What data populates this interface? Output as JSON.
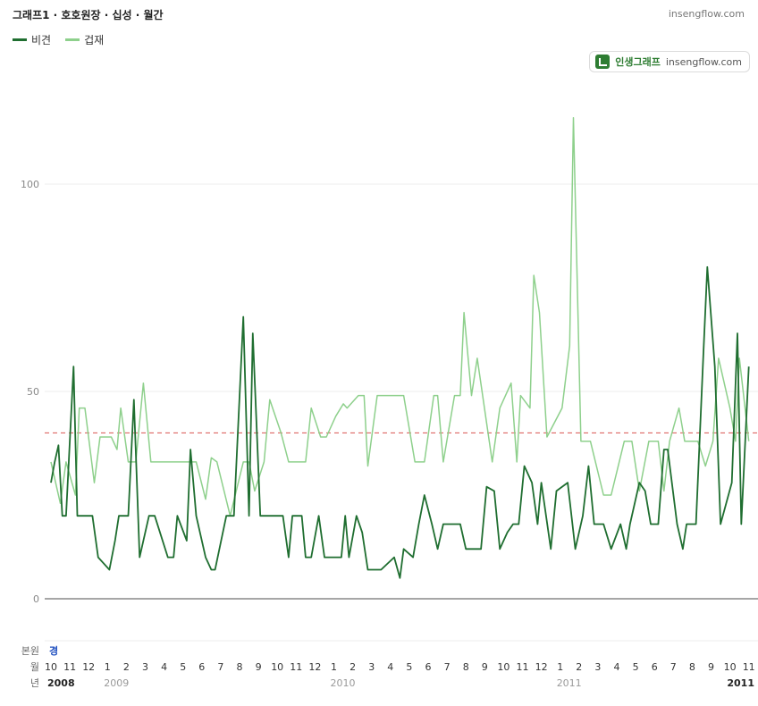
{
  "header": {
    "title": "그래프1 · 호호원장 · 십성 · 월간",
    "site": "insengflow.com"
  },
  "badge": {
    "brand": "인생그래프",
    "url": "insengflow.com"
  },
  "legend": [
    {
      "name": "비견",
      "color": "#1f6e30"
    },
    {
      "name": "겁재",
      "color": "#8ed08c"
    }
  ],
  "rows": {
    "bonwon": "본원",
    "bonwon_value": "경",
    "month": "월",
    "year": "년"
  },
  "chart_data": {
    "type": "line",
    "ylim": [
      0,
      130
    ],
    "y_ticks": [
      0,
      50,
      100
    ],
    "reference_line": 40,
    "grid": true,
    "legend_position": "top-left",
    "month_labels": [
      "10",
      "11",
      "12",
      "1",
      "2",
      "3",
      "4",
      "5",
      "6",
      "7",
      "8",
      "9",
      "10",
      "11",
      "12",
      "1",
      "2",
      "3",
      "4",
      "5",
      "6",
      "7",
      "8",
      "9",
      "10",
      "11",
      "12",
      "1",
      "2",
      "3",
      "4",
      "5",
      "6",
      "7",
      "8",
      "9",
      "10",
      "11"
    ],
    "year_labels": [
      {
        "label": "2008",
        "month_index": 0,
        "bold": true
      },
      {
        "label": "2009",
        "month_index": 3,
        "bold": false
      },
      {
        "label": "2010",
        "month_index": 15,
        "bold": false
      },
      {
        "label": "2011",
        "month_index": 27,
        "bold": false
      },
      {
        "label": "2011",
        "month_index": 37,
        "bold": true
      }
    ],
    "series": [
      {
        "name": "비견",
        "color": "#1f6e30",
        "points": [
          [
            0,
            28
          ],
          [
            0.2,
            33
          ],
          [
            0.4,
            37
          ],
          [
            0.6,
            20
          ],
          [
            0.8,
            20
          ],
          [
            1.2,
            56
          ],
          [
            1.4,
            20
          ],
          [
            1.8,
            20
          ],
          [
            2.2,
            20
          ],
          [
            2.5,
            10
          ],
          [
            3.1,
            7
          ],
          [
            3.4,
            14
          ],
          [
            3.6,
            20
          ],
          [
            4.1,
            20
          ],
          [
            4.4,
            48
          ],
          [
            4.7,
            10
          ],
          [
            5.2,
            20
          ],
          [
            5.5,
            20
          ],
          [
            6.2,
            10
          ],
          [
            6.5,
            10
          ],
          [
            6.7,
            20
          ],
          [
            7.2,
            14
          ],
          [
            7.4,
            36
          ],
          [
            7.7,
            20
          ],
          [
            8.2,
            10
          ],
          [
            8.5,
            7
          ],
          [
            8.7,
            7
          ],
          [
            9.3,
            20
          ],
          [
            9.7,
            20
          ],
          [
            10.2,
            68
          ],
          [
            10.5,
            20
          ],
          [
            10.7,
            64
          ],
          [
            11.1,
            20
          ],
          [
            11.6,
            20
          ],
          [
            12.3,
            20
          ],
          [
            12.6,
            10
          ],
          [
            12.8,
            20
          ],
          [
            13.3,
            20
          ],
          [
            13.5,
            10
          ],
          [
            13.8,
            10
          ],
          [
            14.2,
            20
          ],
          [
            14.5,
            10
          ],
          [
            15.1,
            10
          ],
          [
            15.4,
            10
          ],
          [
            15.6,
            20
          ],
          [
            15.8,
            10
          ],
          [
            16.2,
            20
          ],
          [
            16.5,
            16
          ],
          [
            16.8,
            7
          ],
          [
            17.2,
            7
          ],
          [
            17.5,
            7
          ],
          [
            18.2,
            10
          ],
          [
            18.5,
            5
          ],
          [
            18.7,
            12
          ],
          [
            19.2,
            10
          ],
          [
            19.5,
            18
          ],
          [
            19.8,
            25
          ],
          [
            20.2,
            18
          ],
          [
            20.5,
            12
          ],
          [
            20.8,
            18
          ],
          [
            21.2,
            18
          ],
          [
            21.7,
            18
          ],
          [
            22.0,
            12
          ],
          [
            22.5,
            12
          ],
          [
            22.8,
            12
          ],
          [
            23.1,
            27
          ],
          [
            23.5,
            26
          ],
          [
            23.8,
            12
          ],
          [
            24.2,
            16
          ],
          [
            24.5,
            18
          ],
          [
            24.8,
            18
          ],
          [
            25.1,
            32
          ],
          [
            25.5,
            28
          ],
          [
            25.8,
            18
          ],
          [
            26.0,
            28
          ],
          [
            26.5,
            12
          ],
          [
            26.8,
            26
          ],
          [
            27.4,
            28
          ],
          [
            27.8,
            12
          ],
          [
            28.2,
            20
          ],
          [
            28.5,
            32
          ],
          [
            28.8,
            18
          ],
          [
            29.3,
            18
          ],
          [
            29.7,
            12
          ],
          [
            30.2,
            18
          ],
          [
            30.5,
            12
          ],
          [
            30.7,
            18
          ],
          [
            31.2,
            28
          ],
          [
            31.5,
            26
          ],
          [
            31.8,
            18
          ],
          [
            32.2,
            18
          ],
          [
            32.5,
            36
          ],
          [
            32.7,
            36
          ],
          [
            33.2,
            18
          ],
          [
            33.5,
            12
          ],
          [
            33.7,
            18
          ],
          [
            34.2,
            18
          ],
          [
            34.6,
            60
          ],
          [
            34.8,
            80
          ],
          [
            35.2,
            56
          ],
          [
            35.5,
            18
          ],
          [
            36.1,
            28
          ],
          [
            36.4,
            64
          ],
          [
            36.6,
            18
          ],
          [
            37.0,
            56
          ]
        ]
      },
      {
        "name": "겁재",
        "color": "#8ed08c",
        "points": [
          [
            0,
            33
          ],
          [
            0.5,
            23
          ],
          [
            0.8,
            33
          ],
          [
            1.3,
            25
          ],
          [
            1.5,
            46
          ],
          [
            1.8,
            46
          ],
          [
            2.3,
            28
          ],
          [
            2.6,
            39
          ],
          [
            3.2,
            39
          ],
          [
            3.5,
            36
          ],
          [
            3.7,
            46
          ],
          [
            4.1,
            33
          ],
          [
            4.5,
            33
          ],
          [
            4.9,
            52
          ],
          [
            5.3,
            33
          ],
          [
            6.2,
            33
          ],
          [
            6.8,
            33
          ],
          [
            7.2,
            33
          ],
          [
            7.7,
            33
          ],
          [
            8.2,
            24
          ],
          [
            8.5,
            34
          ],
          [
            8.8,
            33
          ],
          [
            9.5,
            20
          ],
          [
            10.2,
            33
          ],
          [
            10.5,
            33
          ],
          [
            10.8,
            26
          ],
          [
            11.3,
            33
          ],
          [
            11.6,
            48
          ],
          [
            12.2,
            40
          ],
          [
            12.6,
            33
          ],
          [
            13.2,
            33
          ],
          [
            13.5,
            33
          ],
          [
            13.8,
            46
          ],
          [
            14.3,
            39
          ],
          [
            14.6,
            39
          ],
          [
            15.1,
            44
          ],
          [
            15.5,
            47
          ],
          [
            15.7,
            46
          ],
          [
            16.3,
            49
          ],
          [
            16.6,
            49
          ],
          [
            16.8,
            32
          ],
          [
            17.3,
            49
          ],
          [
            18.7,
            49
          ],
          [
            19.3,
            33
          ],
          [
            19.8,
            33
          ],
          [
            20.3,
            49
          ],
          [
            20.5,
            49
          ],
          [
            20.8,
            33
          ],
          [
            21.4,
            49
          ],
          [
            21.7,
            49
          ],
          [
            21.9,
            69
          ],
          [
            22.3,
            49
          ],
          [
            22.6,
            58
          ],
          [
            23.4,
            33
          ],
          [
            23.8,
            46
          ],
          [
            24.4,
            52
          ],
          [
            24.7,
            33
          ],
          [
            24.9,
            49
          ],
          [
            25.4,
            46
          ],
          [
            25.6,
            78
          ],
          [
            25.9,
            69
          ],
          [
            26.3,
            39
          ],
          [
            27.1,
            46
          ],
          [
            27.5,
            61
          ],
          [
            27.7,
            116
          ],
          [
            28.1,
            38
          ],
          [
            28.6,
            38
          ],
          [
            29.3,
            25
          ],
          [
            29.7,
            25
          ],
          [
            30.4,
            38
          ],
          [
            30.8,
            38
          ],
          [
            31.2,
            26
          ],
          [
            31.7,
            38
          ],
          [
            32.2,
            38
          ],
          [
            32.5,
            26
          ],
          [
            32.8,
            38
          ],
          [
            33.3,
            46
          ],
          [
            33.6,
            38
          ],
          [
            34.3,
            38
          ],
          [
            34.7,
            32
          ],
          [
            35.1,
            38
          ],
          [
            35.4,
            58
          ],
          [
            36.0,
            46
          ],
          [
            36.3,
            38
          ],
          [
            36.5,
            58
          ],
          [
            37.0,
            38
          ]
        ]
      }
    ]
  }
}
